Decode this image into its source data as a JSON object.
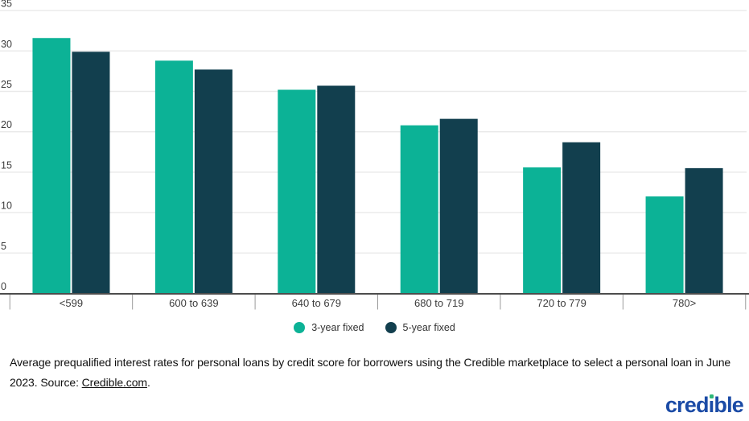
{
  "chart_data": {
    "type": "bar",
    "title": "",
    "xlabel": "",
    "ylabel": "",
    "categories": [
      "<599",
      "600 to 639",
      "640 to 679",
      "680 to 719",
      "720 to 779",
      "780>"
    ],
    "series": [
      {
        "name": "3-year fixed",
        "color": "#0CB296",
        "values": [
          31.6,
          28.8,
          25.2,
          20.8,
          15.6,
          12.0
        ]
      },
      {
        "name": "5-year fixed",
        "color": "#123F4E",
        "values": [
          29.9,
          27.7,
          25.7,
          21.6,
          18.7,
          15.5
        ]
      }
    ],
    "ylim": [
      0,
      35
    ],
    "ytick_step": 5,
    "yticks": [
      0,
      5,
      10,
      15,
      20,
      25,
      30,
      35
    ],
    "grid": true,
    "legend_position": "bottom",
    "colors": {
      "gridline": "#e9e9e9",
      "axis_line": "#4d4d4d",
      "tick": "#9b9b9b",
      "axis_label": "#3c3c3c"
    }
  },
  "caption": {
    "text_before_link": "Average prequalified interest rates for personal loans by credit score for borrowers using the Credible marketplace to select a personal loan in June 2023. Source: ",
    "link_text": "Credible.com",
    "text_after_link": "."
  },
  "logo": {
    "text": "credible",
    "color": "#1B4BA6",
    "dot_color": "#2EB878"
  }
}
